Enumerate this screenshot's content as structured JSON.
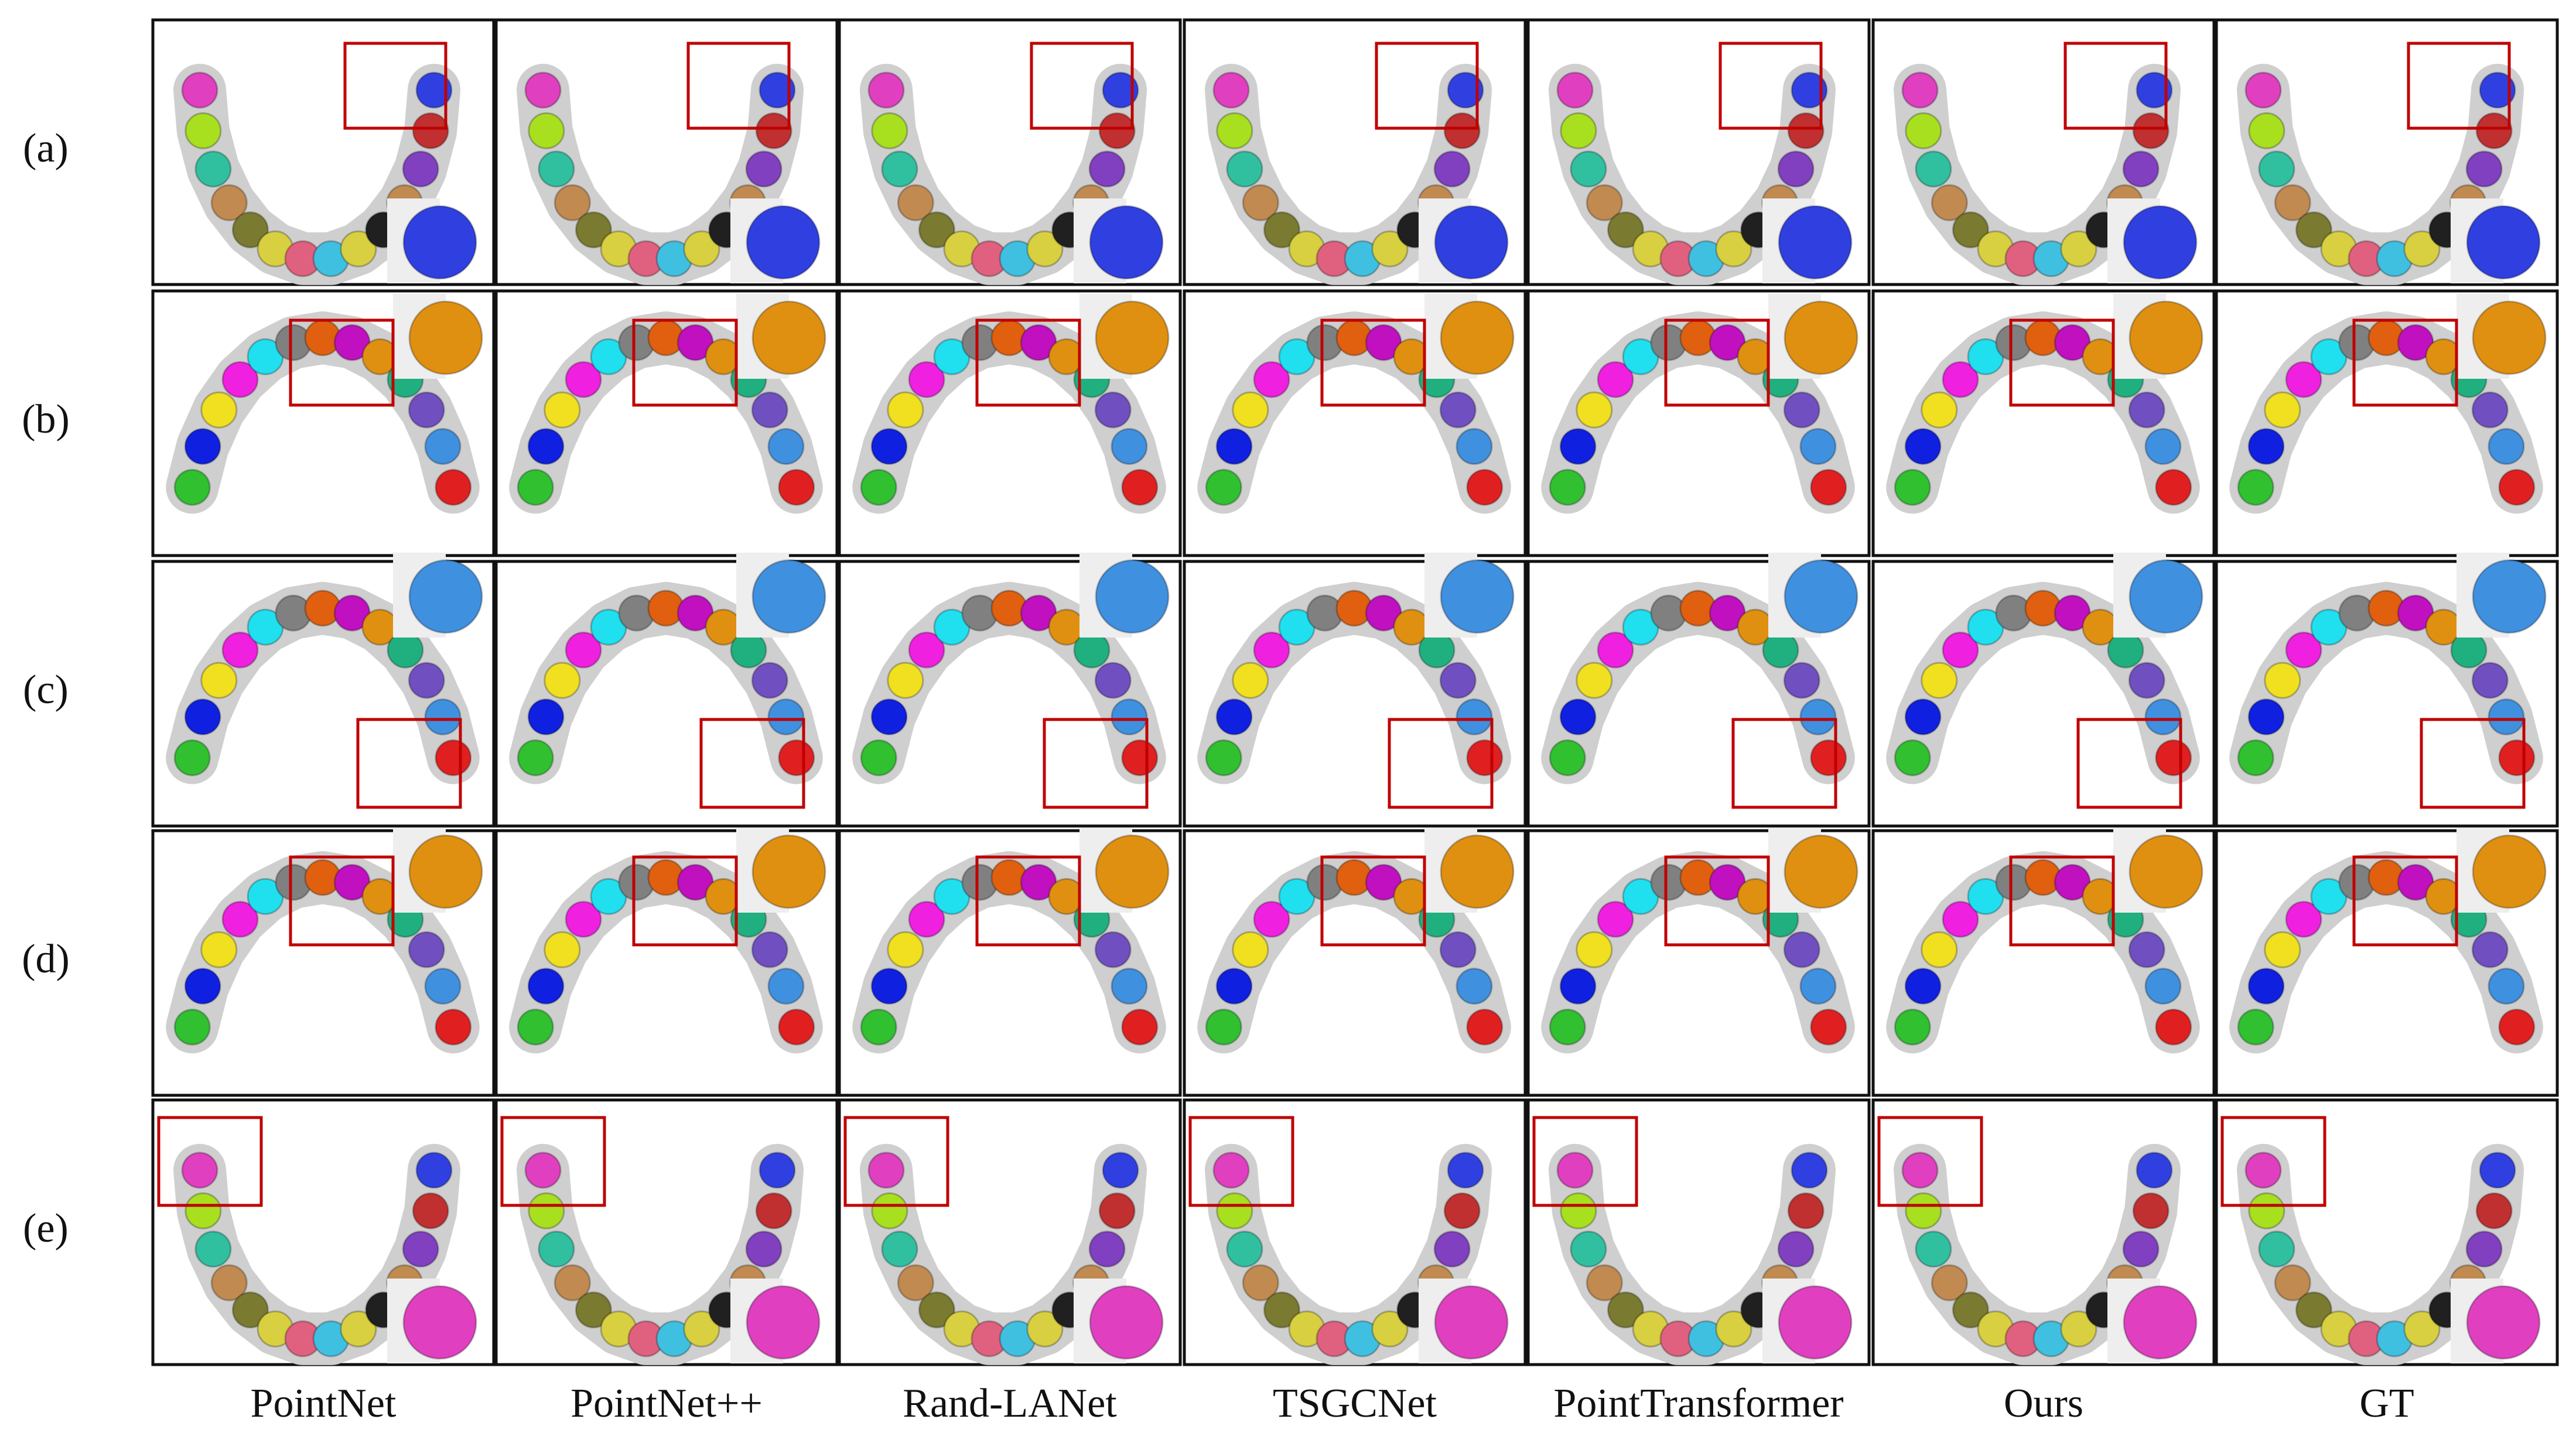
{
  "row_labels": [
    "(a)",
    "(b)",
    "(c)",
    "(d)",
    "(e)"
  ],
  "column_labels": [
    "PointNet",
    "PointNet++",
    "Rand-LANet",
    "TSGCNet",
    "PointTransformer",
    "Ours",
    "GT"
  ]
}
